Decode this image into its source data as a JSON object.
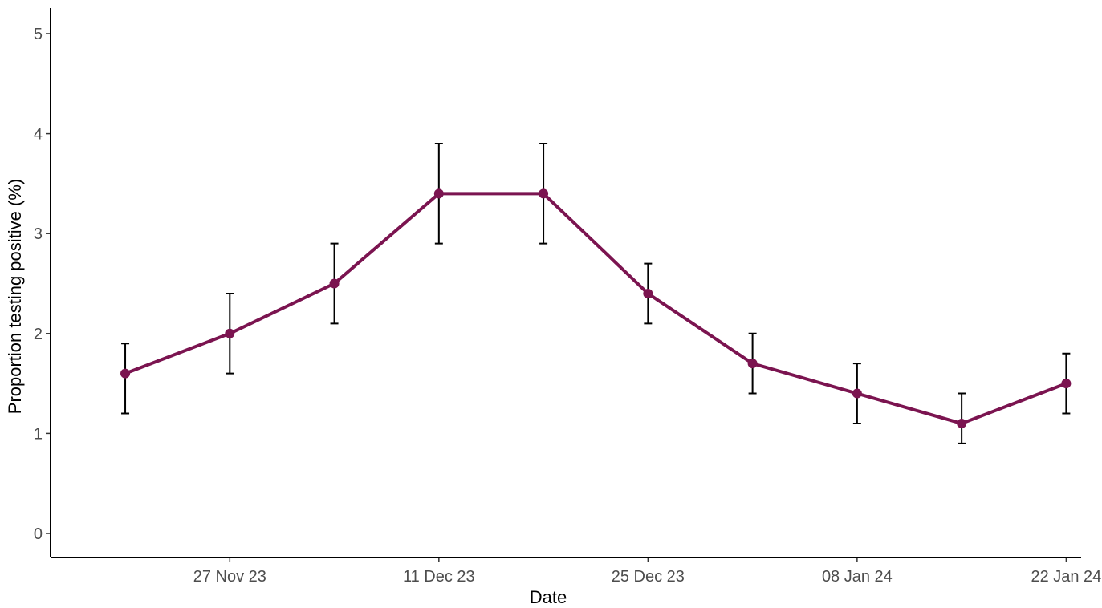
{
  "chart_data": {
    "type": "line",
    "xlabel": "Date",
    "ylabel": "Proportion testing positive (%)",
    "ylim": [
      0,
      5
    ],
    "yticks": [
      0,
      1,
      2,
      3,
      4,
      5
    ],
    "xlim": [
      "2023-11-15",
      "2024-01-23"
    ],
    "xticks": [
      {
        "date": "2023-11-27",
        "label": "27 Nov 23"
      },
      {
        "date": "2023-12-11",
        "label": "11 Dec 23"
      },
      {
        "date": "2023-12-25",
        "label": "25 Dec 23"
      },
      {
        "date": "2024-01-08",
        "label": "08 Jan 24"
      },
      {
        "date": "2024-01-22",
        "label": "22 Jan 24"
      }
    ],
    "grid": false,
    "legend": "none",
    "series": [
      {
        "color": "#7b1450",
        "points": [
          {
            "x": "2023-11-20",
            "y": 1.6,
            "lower": 1.2,
            "upper": 1.9
          },
          {
            "x": "2023-11-27",
            "y": 2.0,
            "lower": 1.6,
            "upper": 2.4
          },
          {
            "x": "2023-12-04",
            "y": 2.5,
            "lower": 2.1,
            "upper": 2.9
          },
          {
            "x": "2023-12-11",
            "y": 3.4,
            "lower": 2.9,
            "upper": 3.9
          },
          {
            "x": "2023-12-18",
            "y": 3.4,
            "lower": 2.9,
            "upper": 3.9
          },
          {
            "x": "2023-12-25",
            "y": 2.4,
            "lower": 2.1,
            "upper": 2.7
          },
          {
            "x": "2024-01-01",
            "y": 1.7,
            "lower": 1.4,
            "upper": 2.0
          },
          {
            "x": "2024-01-08",
            "y": 1.4,
            "lower": 1.1,
            "upper": 1.7
          },
          {
            "x": "2024-01-15",
            "y": 1.1,
            "lower": 0.9,
            "upper": 1.4
          },
          {
            "x": "2024-01-22",
            "y": 1.5,
            "lower": 1.2,
            "upper": 1.8
          }
        ]
      }
    ]
  }
}
